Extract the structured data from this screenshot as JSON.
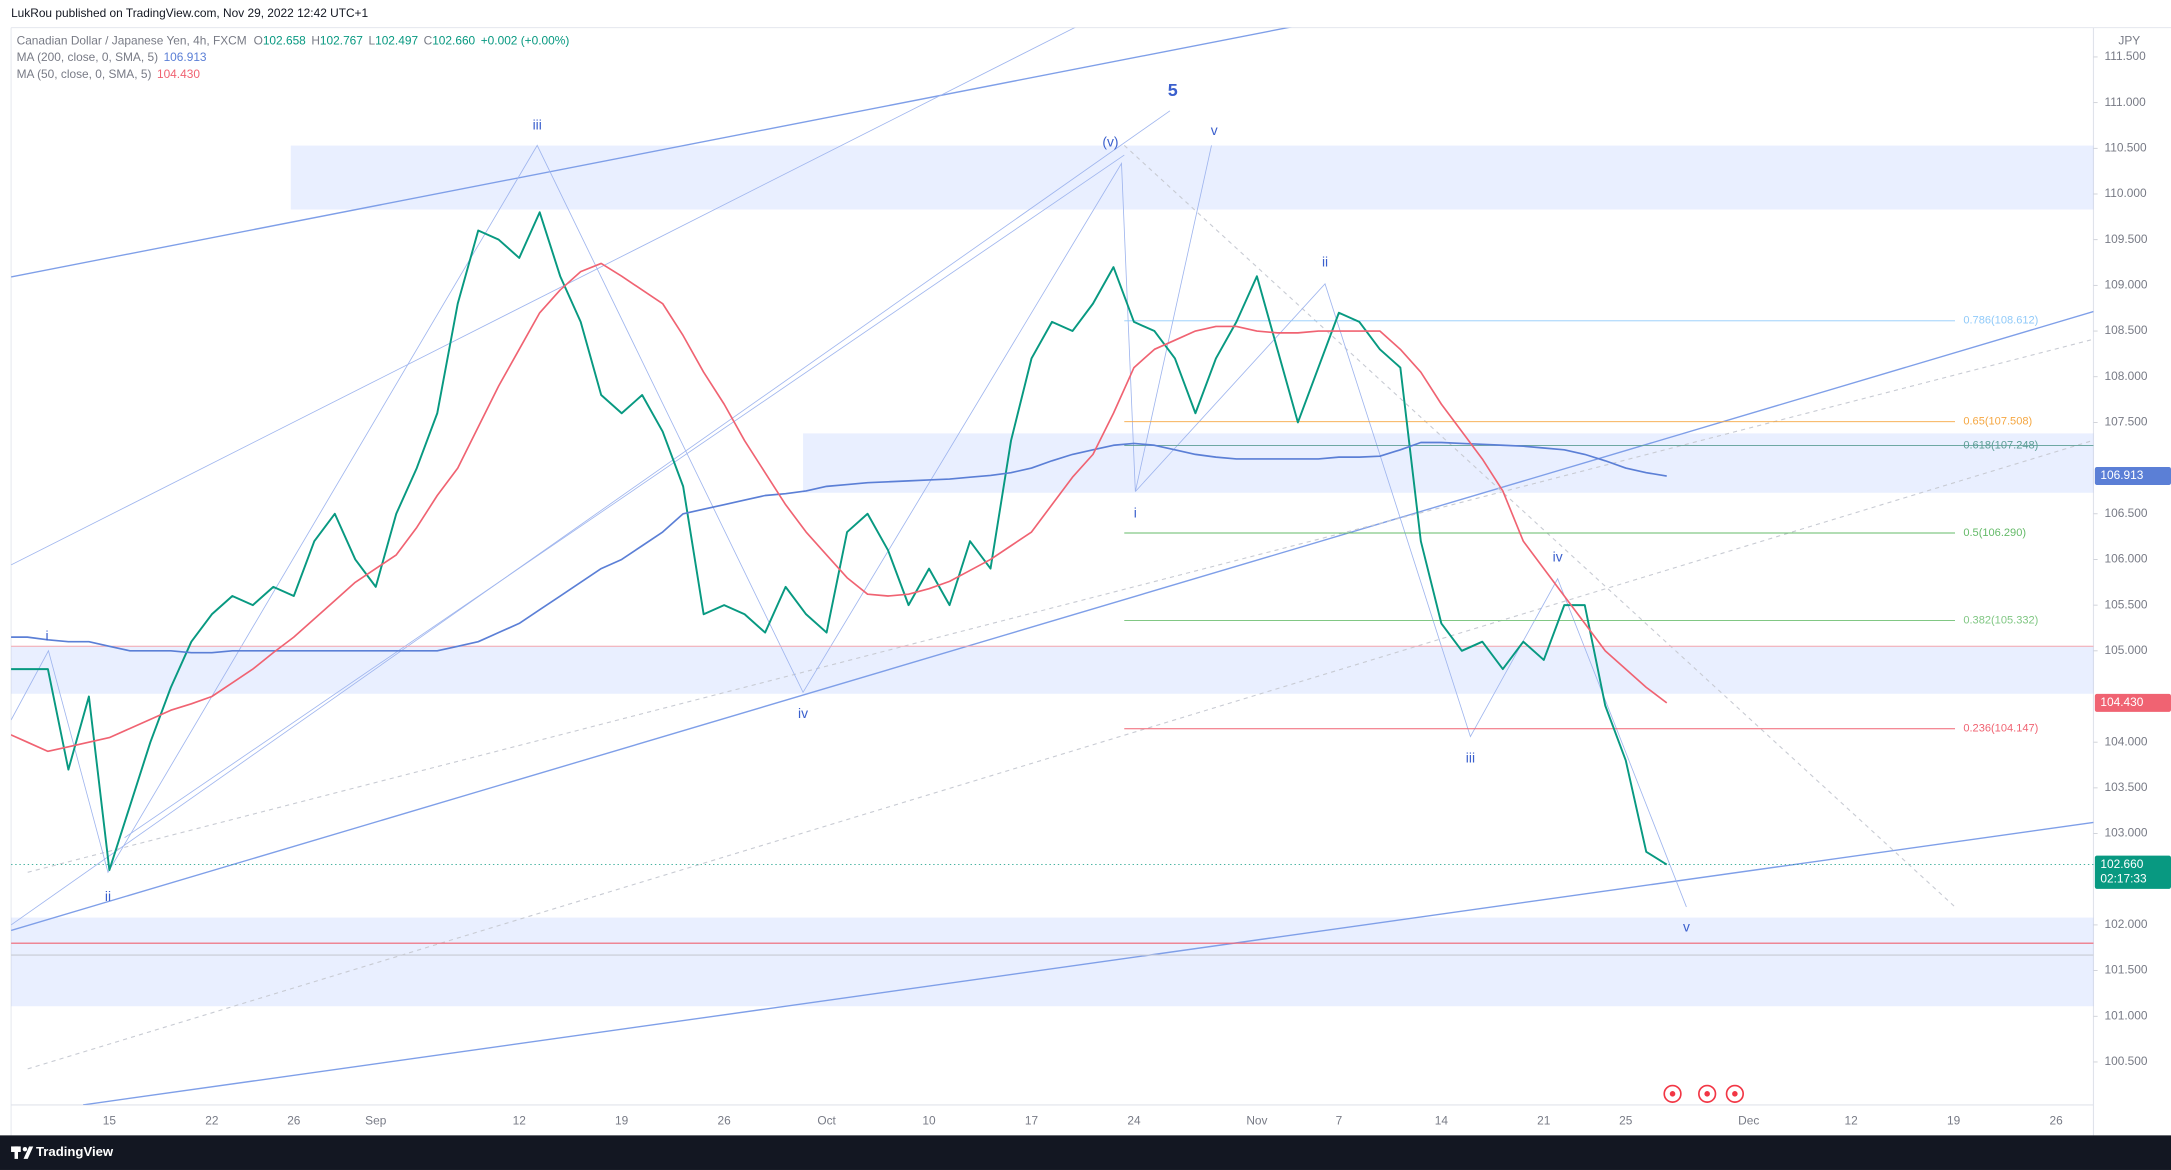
{
  "chart_data": {
    "type": "line",
    "publisher": "LukRou published on TradingView.com, Nov 29, 2022 12:42 UTC+1",
    "title": "Canadian Dollar / Japanese Yen, 4h, FXCM",
    "ohlc": [
      {
        "key": "O",
        "value": "102.658"
      },
      {
        "key": "H",
        "value": "102.767"
      },
      {
        "key": "L",
        "value": "102.497"
      },
      {
        "key": "C",
        "value": "102.660"
      }
    ],
    "change": "+0.002 (+0.00%)",
    "currency": "JPY",
    "brand": "TradingView",
    "categories": [
      null,
      null,
      null,
      null,
      null,
      "15",
      null,
      null,
      null,
      null,
      "22",
      null,
      null,
      null,
      "26",
      null,
      null,
      null,
      "Sep",
      null,
      null,
      null,
      null,
      null,
      null,
      "12",
      null,
      null,
      null,
      null,
      "19",
      null,
      null,
      null,
      null,
      "26",
      null,
      null,
      null,
      null,
      "Oct",
      null,
      null,
      null,
      null,
      "10",
      null,
      null,
      null,
      null,
      "17",
      null,
      null,
      null,
      null,
      "24",
      null,
      null,
      null,
      null,
      null,
      "Nov",
      null,
      null,
      null,
      "7",
      null,
      null,
      null,
      null,
      "14",
      null,
      null,
      null,
      null,
      "21",
      null,
      null,
      null,
      "25",
      null,
      null,
      null,
      null,
      null,
      "Dec",
      null,
      null,
      null,
      null,
      "12",
      null,
      null,
      null,
      null,
      "19",
      null,
      null,
      null,
      null,
      "26",
      null
    ],
    "series": [
      {
        "color": "#089981",
        "last_label": "102.660",
        "countdown": "02:17:33",
        "values": [
          104.8,
          104.8,
          104.8,
          103.7,
          104.5,
          102.6,
          103.3,
          104.0,
          104.6,
          105.1,
          105.4,
          105.6,
          105.5,
          105.7,
          105.6,
          106.2,
          106.5,
          106.0,
          105.7,
          106.5,
          107.0,
          107.6,
          108.8,
          109.6,
          109.5,
          109.3,
          109.8,
          109.1,
          108.6,
          107.8,
          107.6,
          107.8,
          107.4,
          106.8,
          105.4,
          105.5,
          105.4,
          105.2,
          105.7,
          105.4,
          105.2,
          106.3,
          106.5,
          106.1,
          105.5,
          105.9,
          105.5,
          106.2,
          105.9,
          107.3,
          108.2,
          108.6,
          108.5,
          108.8,
          109.2,
          108.6,
          108.5,
          108.2,
          107.6,
          108.2,
          108.6,
          109.1,
          108.3,
          107.5,
          108.1,
          108.7,
          108.6,
          108.3,
          108.1,
          106.2,
          105.3,
          105.0,
          105.1,
          104.8,
          105.1,
          104.9,
          105.5,
          105.5,
          104.4,
          103.8,
          102.8,
          102.66,
          null,
          null,
          null,
          null,
          null,
          null,
          null,
          null,
          null,
          null,
          null,
          null,
          null,
          null,
          null,
          null,
          null,
          null,
          null,
          null
        ]
      },
      {
        "name": "MA (200, close, 0, SMA, 5)",
        "color": "#5b7fd6",
        "last_label": "106.913",
        "values": [
          105.15,
          105.15,
          105.12,
          105.1,
          105.1,
          105.05,
          105.0,
          105.0,
          105.0,
          104.98,
          104.98,
          105.0,
          105.0,
          105.0,
          105.0,
          105.0,
          105.0,
          105.0,
          105.0,
          105.0,
          105.0,
          105.0,
          105.05,
          105.1,
          105.2,
          105.3,
          105.45,
          105.6,
          105.75,
          105.9,
          106.0,
          106.15,
          106.3,
          106.5,
          106.55,
          106.6,
          106.65,
          106.7,
          106.72,
          106.75,
          106.8,
          106.82,
          106.84,
          106.85,
          106.86,
          106.87,
          106.88,
          106.9,
          106.92,
          106.95,
          107.0,
          107.08,
          107.15,
          107.2,
          107.25,
          107.27,
          107.25,
          107.2,
          107.15,
          107.12,
          107.1,
          107.1,
          107.1,
          107.1,
          107.1,
          107.12,
          107.12,
          107.13,
          107.2,
          107.28,
          107.28,
          107.27,
          107.26,
          107.25,
          107.24,
          107.22,
          107.2,
          107.15,
          107.08,
          107.0,
          106.95,
          106.913,
          null,
          null,
          null,
          null,
          null,
          null,
          null,
          null,
          null,
          null,
          null,
          null,
          null,
          null,
          null,
          null,
          null,
          null,
          null,
          null
        ]
      },
      {
        "name": "MA (50, close, 0, SMA, 5)",
        "color": "#f06372",
        "last_label": "104.430",
        "values": [
          104.1,
          104.0,
          103.9,
          103.95,
          104.0,
          104.05,
          104.15,
          104.25,
          104.35,
          104.42,
          104.5,
          104.65,
          104.8,
          104.98,
          105.15,
          105.35,
          105.55,
          105.75,
          105.9,
          106.05,
          106.35,
          106.7,
          107.0,
          107.45,
          107.9,
          108.3,
          108.7,
          108.95,
          109.15,
          109.24,
          109.1,
          108.95,
          108.8,
          108.45,
          108.05,
          107.7,
          107.3,
          106.95,
          106.6,
          106.3,
          106.05,
          105.8,
          105.62,
          105.6,
          105.62,
          105.68,
          105.76,
          105.88,
          106.0,
          106.15,
          106.3,
          106.6,
          106.9,
          107.15,
          107.6,
          108.1,
          108.3,
          108.4,
          108.5,
          108.55,
          108.55,
          108.5,
          108.48,
          108.48,
          108.5,
          108.5,
          108.5,
          108.5,
          108.3,
          108.05,
          107.7,
          107.4,
          107.1,
          106.75,
          106.2,
          105.9,
          105.6,
          105.3,
          105.0,
          104.8,
          104.6,
          104.43,
          null,
          null,
          null,
          null,
          null,
          null,
          null,
          null,
          null,
          null,
          null,
          null,
          null,
          null,
          null,
          null,
          null,
          null,
          null,
          null
        ]
      }
    ],
    "ylim": [
      100.03,
      111.82
    ],
    "yticks": [
      {
        "value": 100.5,
        "label": "100.500"
      },
      {
        "value": 101,
        "label": "101.000"
      },
      {
        "value": 101.5,
        "label": "101.500"
      },
      {
        "value": 102,
        "label": "102.000"
      },
      {
        "value": 103,
        "label": "103.000"
      },
      {
        "value": 103.5,
        "label": "103.500"
      },
      {
        "value": 104,
        "label": "104.000"
      },
      {
        "value": 105,
        "label": "105.000"
      },
      {
        "value": 105.5,
        "label": "105.500"
      },
      {
        "value": 106,
        "label": "106.000"
      },
      {
        "value": 106.5,
        "label": "106.500"
      },
      {
        "value": 107.5,
        "label": "107.500"
      },
      {
        "value": 108,
        "label": "108.000"
      },
      {
        "value": 108.5,
        "label": "108.500"
      },
      {
        "value": 109,
        "label": "109.000"
      },
      {
        "value": 109.5,
        "label": "109.500"
      },
      {
        "value": 110,
        "label": "110.000"
      },
      {
        "value": 110.5,
        "label": "110.500"
      },
      {
        "value": 111,
        "label": "111.000"
      },
      {
        "value": 111.5,
        "label": "111.500"
      }
    ],
    "grid": false,
    "zones": [
      [
        109.83,
        110.53
      ],
      [
        106.73,
        107.38
      ],
      [
        104.53,
        105.05
      ],
      [
        101.11,
        102.08
      ]
    ],
    "levels": [
      {
        "value": 105.05,
        "color": "#f4a6ae"
      },
      {
        "value": 101.8,
        "color": "#f06372"
      },
      {
        "value": 101.67,
        "color": "#c8cbd3"
      }
    ],
    "fib": [
      {
        "label": "0.786(108.612)",
        "value": 108.612,
        "color": "#90caf9"
      },
      {
        "label": "0.65(107.508)",
        "value": 107.508,
        "color": "#f5a742"
      },
      {
        "label": "0.618(107.248)",
        "value": 107.248,
        "color": "#5c9e96"
      },
      {
        "label": "0.5(106.290)",
        "value": 106.29,
        "color": "#66bb6a"
      },
      {
        "label": "0.382(105.332)",
        "value": 105.332,
        "color": "#81c784"
      },
      {
        "label": "0.236(104.147)",
        "value": 104.147,
        "color": "#f06372"
      }
    ],
    "annotations": [
      "iii",
      "5",
      "(v)",
      "v",
      "i",
      "ii",
      "iv",
      "i",
      "ii",
      "iii",
      "iv",
      "v"
    ]
  }
}
